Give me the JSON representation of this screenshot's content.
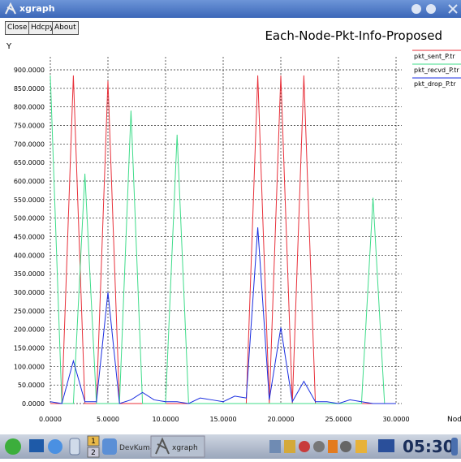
{
  "window": {
    "title": "xgraph",
    "buttons": [
      "Close",
      "Hdcpy",
      "About"
    ]
  },
  "taskbar": {
    "items": [
      "1",
      "2",
      "DevKumar",
      "xgraph"
    ],
    "clock": "05:30"
  },
  "chart_data": {
    "type": "line",
    "title": "Each-Node-Pkt-Info-Proposed",
    "ylabel": "Y",
    "xlabel": "Node",
    "x": [
      0,
      1,
      2,
      3,
      4,
      5,
      6,
      7,
      8,
      9,
      10,
      11,
      12,
      13,
      14,
      15,
      16,
      17,
      18,
      19,
      20,
      21,
      22,
      23,
      24,
      25,
      26,
      27,
      28,
      29,
      30
    ],
    "series": [
      {
        "name": "pkt_sent_P.tr",
        "color": "#e8303a",
        "values": [
          0,
          0,
          885,
          0,
          0,
          870,
          0,
          0,
          0,
          0,
          0,
          0,
          0,
          0,
          0,
          0,
          0,
          0,
          885,
          0,
          885,
          0,
          885,
          0,
          0,
          0,
          0,
          0,
          0,
          0,
          0
        ]
      },
      {
        "name": "pkt_recvd_P.tr",
        "color": "#3fdc8a",
        "values": [
          885,
          0,
          0,
          620,
          0,
          0,
          0,
          790,
          0,
          0,
          0,
          725,
          0,
          0,
          0,
          0,
          0,
          0,
          0,
          0,
          0,
          0,
          0,
          0,
          0,
          0,
          0,
          0,
          555,
          0,
          0
        ]
      },
      {
        "name": "pkt_drop_P.tr",
        "color": "#1a2ee0",
        "values": [
          5,
          0,
          115,
          5,
          5,
          300,
          0,
          10,
          30,
          10,
          5,
          5,
          0,
          15,
          10,
          5,
          20,
          15,
          475,
          10,
          205,
          5,
          60,
          5,
          5,
          0,
          10,
          5,
          0,
          0,
          0
        ]
      }
    ],
    "xlim": [
      0,
      30
    ],
    "ylim": [
      0,
      900
    ],
    "xticks": [
      {
        "value": 0,
        "label": "0.0000"
      },
      {
        "value": 5,
        "label": "5.0000"
      },
      {
        "value": 10,
        "label": "10.0000"
      },
      {
        "value": 15,
        "label": "15.0000"
      },
      {
        "value": 20,
        "label": "20.0000"
      },
      {
        "value": 25,
        "label": "25.0000"
      },
      {
        "value": 30,
        "label": "30.0000"
      }
    ],
    "yticks": [
      {
        "value": 0,
        "label": "0.0000"
      },
      {
        "value": 50,
        "label": "50.0000"
      },
      {
        "value": 100,
        "label": "100.0000"
      },
      {
        "value": 150,
        "label": "150.0000"
      },
      {
        "value": 200,
        "label": "200.0000"
      },
      {
        "value": 250,
        "label": "250.0000"
      },
      {
        "value": 300,
        "label": "300.0000"
      },
      {
        "value": 350,
        "label": "350.0000"
      },
      {
        "value": 400,
        "label": "400.0000"
      },
      {
        "value": 450,
        "label": "450.0000"
      },
      {
        "value": 500,
        "label": "500.0000"
      },
      {
        "value": 550,
        "label": "550.0000"
      },
      {
        "value": 600,
        "label": "600.0000"
      },
      {
        "value": 650,
        "label": "650.0000"
      },
      {
        "value": 700,
        "label": "700.0000"
      },
      {
        "value": 750,
        "label": "750.0000"
      },
      {
        "value": 800,
        "label": "800.0000"
      },
      {
        "value": 850,
        "label": "850.0000"
      },
      {
        "value": 900,
        "label": "900.0000"
      }
    ],
    "grid": true,
    "legend": "right"
  }
}
